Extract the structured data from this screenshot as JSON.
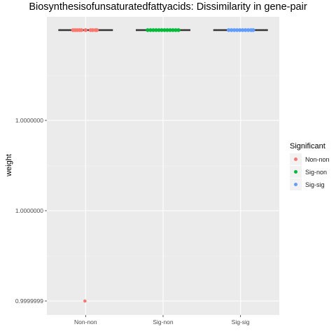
{
  "chart_data": {
    "type": "boxplot",
    "title": "Biosynthesisofunsaturatedfattyacids: Dissimilarity in gene-pair",
    "xlabel": "",
    "ylabel": "weight",
    "categories": [
      "Non-non",
      "Sig-non",
      "Sig-sig"
    ],
    "y_tick_labels": [
      "0.9999999",
      "1.0000000",
      "1.0000000"
    ],
    "legend": {
      "title": "Significant",
      "placement": "right",
      "entries": [
        "Non-non",
        "Sig-non",
        "Sig-sig"
      ]
    },
    "series": [
      {
        "name": "Non-non",
        "color": "#F8766D",
        "median": 1.0,
        "outliers": [
          0.9999999
        ]
      },
      {
        "name": "Sig-non",
        "color": "#00BA38",
        "median": 1.0,
        "outliers": []
      },
      {
        "name": "Sig-sig",
        "color": "#619CFF",
        "median": 1.0,
        "outliers": []
      }
    ],
    "grid": true,
    "background": "#EBEBEB"
  }
}
